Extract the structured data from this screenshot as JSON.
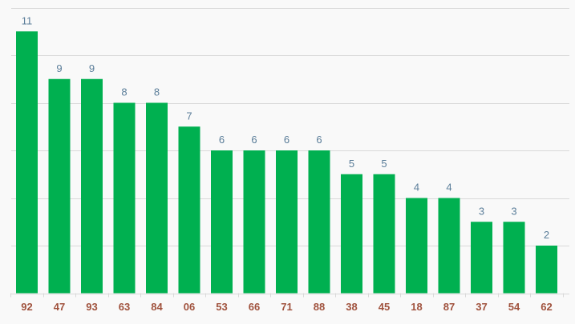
{
  "chart_data": {
    "type": "bar",
    "title": "",
    "xlabel": "",
    "ylabel": "",
    "categories": [
      "92",
      "47",
      "93",
      "63",
      "84",
      "06",
      "53",
      "66",
      "71",
      "88",
      "38",
      "45",
      "18",
      "87",
      "37",
      "54",
      "62"
    ],
    "values": [
      11,
      9,
      9,
      8,
      8,
      7,
      6,
      6,
      6,
      6,
      5,
      5,
      4,
      4,
      3,
      3,
      2
    ],
    "ylim": [
      0,
      12
    ],
    "y_gridline_step": 2,
    "grid": true,
    "legend": "none",
    "data_labels": true,
    "colors": {
      "bar": "#00b050",
      "data_label": "#5a7d99",
      "category_label": "#a0523d",
      "grid": "#d9d9d9",
      "background": "#f9f9f9"
    }
  }
}
